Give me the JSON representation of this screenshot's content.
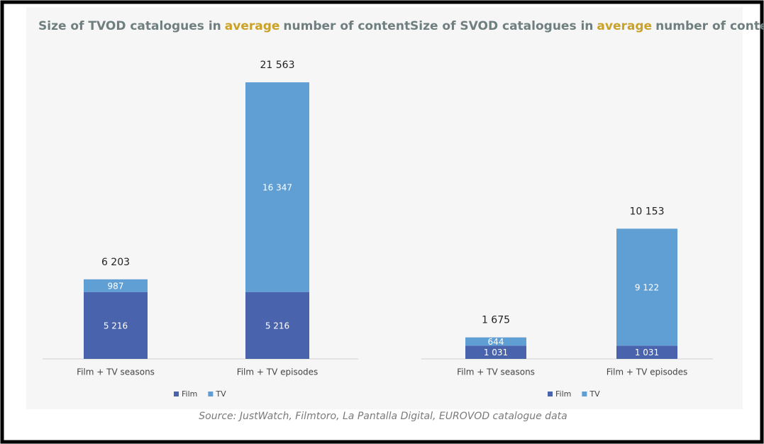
{
  "chart_data": [
    {
      "type": "stacked-bar",
      "title_parts": [
        "Size of TVOD catalogues in",
        "average",
        "number of content"
      ],
      "categories": [
        "Film + TV seasons",
        "Film + TV episodes"
      ],
      "series": [
        {
          "name": "Film",
          "color": "#4a63ad",
          "values": [
            5216,
            5216
          ],
          "value_labels": [
            "5 216",
            "5 216"
          ]
        },
        {
          "name": "TV",
          "color": "#609fd4",
          "values": [
            987,
            16347
          ],
          "value_labels": [
            "987",
            "16 347"
          ]
        }
      ],
      "totals": [
        6203,
        21563
      ],
      "total_labels": [
        "6 203",
        "21 563"
      ],
      "ylim": [
        0,
        24000
      ],
      "legend": "bottom"
    },
    {
      "type": "stacked-bar",
      "title_parts": [
        "Size of SVOD catalogues in",
        "average",
        "number of content"
      ],
      "categories": [
        "Film + TV seasons",
        "Film + TV episodes"
      ],
      "series": [
        {
          "name": "Film",
          "color": "#4a63ad",
          "values": [
            1031,
            1031
          ],
          "value_labels": [
            "1 031",
            "1 031"
          ]
        },
        {
          "name": "TV",
          "color": "#609fd4",
          "values": [
            644,
            9122
          ],
          "value_labels": [
            "644",
            "9 122"
          ]
        }
      ],
      "totals": [
        1675,
        10153
      ],
      "total_labels": [
        "1 675",
        "10 153"
      ],
      "ylim": [
        0,
        24000
      ],
      "legend": "bottom"
    }
  ],
  "source": "Source: JustWatch, Filmtoro, La Pantalla Digital, EUROVOD catalogue data"
}
